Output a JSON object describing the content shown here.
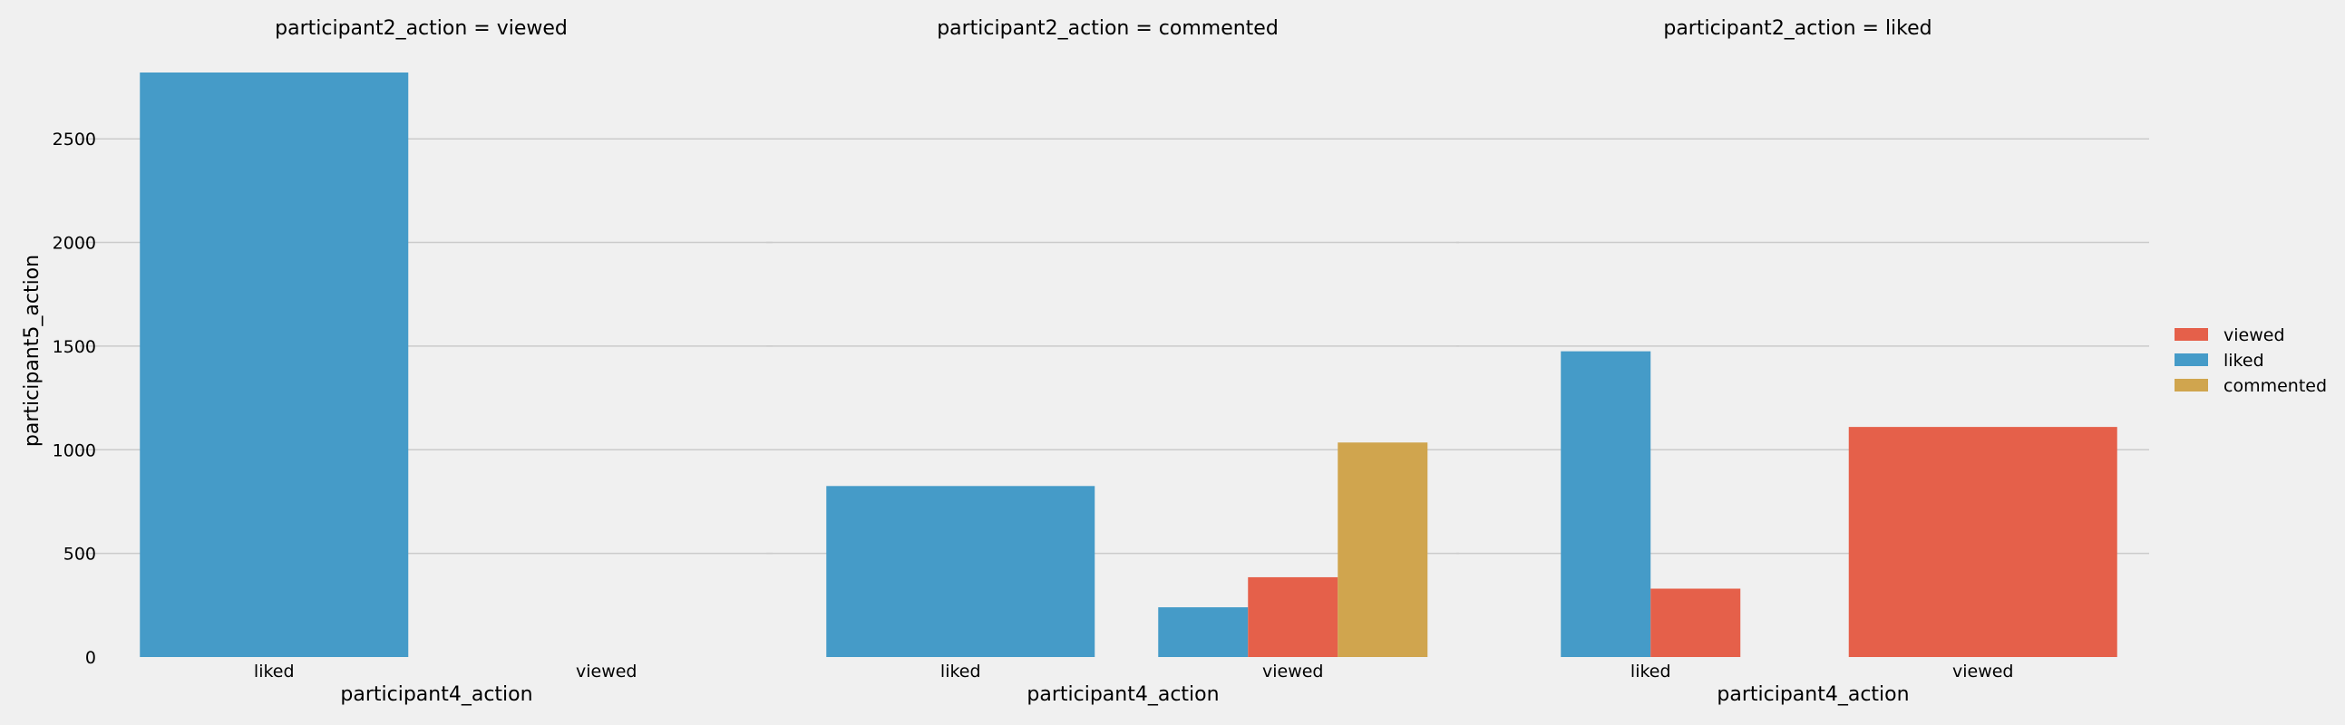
{
  "chart_data": {
    "type": "bar",
    "facet_prefix": "participant2_action = ",
    "panels": [
      {
        "facet": "viewed",
        "categories": [
          "liked",
          "viewed"
        ],
        "series": [
          {
            "name": "viewed",
            "values": [
              null,
              null
            ]
          },
          {
            "name": "liked",
            "values": [
              2820,
              null
            ]
          },
          {
            "name": "commented",
            "values": [
              null,
              null
            ]
          }
        ]
      },
      {
        "facet": "commented",
        "categories": [
          "liked",
          "viewed"
        ],
        "series": [
          {
            "name": "viewed",
            "values": [
              null,
              385
            ]
          },
          {
            "name": "liked",
            "values": [
              825,
              240
            ]
          },
          {
            "name": "commented",
            "values": [
              null,
              1035
            ]
          }
        ]
      },
      {
        "facet": "liked",
        "categories": [
          "liked",
          "viewed"
        ],
        "series": [
          {
            "name": "viewed",
            "values": [
              330,
              1110
            ]
          },
          {
            "name": "liked",
            "values": [
              1475,
              null
            ]
          },
          {
            "name": "commented",
            "values": [
              null,
              null
            ]
          }
        ]
      }
    ],
    "xlabel": "participant4_action",
    "ylabel": "participant5_action",
    "ylim": [
      0,
      2820
    ],
    "yticks": [
      0,
      500,
      1000,
      1500,
      2000,
      2500
    ],
    "grid": true,
    "legend": {
      "placement": "right",
      "entries": [
        "viewed",
        "liked",
        "commented"
      ]
    },
    "colors": {
      "viewed": "#e5604a",
      "liked": "#459bc8",
      "commented": "#d0a54e"
    },
    "background": "#f0f0f0",
    "grid_color": "#cbcbcb"
  }
}
